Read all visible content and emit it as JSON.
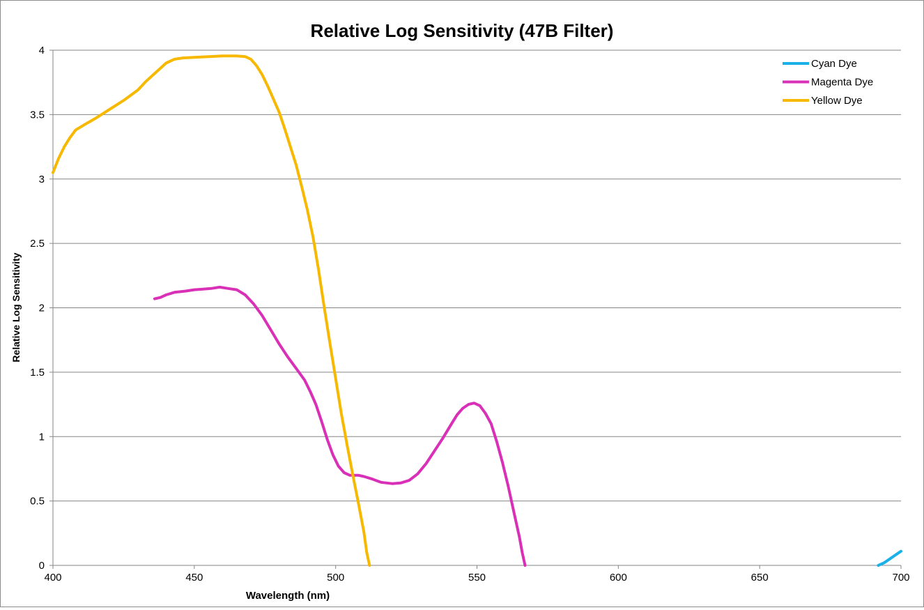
{
  "chart_data": {
    "type": "line",
    "title": "Relative Log Sensitivity (47B Filter)",
    "xlabel": "Wavelength (nm)",
    "ylabel": "Relative Log Sensitivity",
    "xlim": [
      400,
      700
    ],
    "ylim": [
      0,
      4
    ],
    "x_ticks": [
      "400",
      "450",
      "500",
      "550",
      "600",
      "650",
      "700"
    ],
    "y_ticks": [
      "0",
      "0.5",
      "1",
      "1.5",
      "2",
      "2.5",
      "3",
      "3.5",
      "4"
    ],
    "grid": "horizontal",
    "legend_position": "top-right",
    "series": [
      {
        "name": "Cyan Dye",
        "color": "#1ab0e8",
        "points": [
          [
            692,
            0
          ],
          [
            694,
            0.02
          ],
          [
            696,
            0.05
          ],
          [
            698,
            0.08
          ],
          [
            700,
            0.11
          ]
        ]
      },
      {
        "name": "Magenta Dye",
        "color": "#d930b8",
        "points": [
          [
            436,
            2.07
          ],
          [
            438,
            2.08
          ],
          [
            440,
            2.1
          ],
          [
            443,
            2.12
          ],
          [
            447,
            2.13
          ],
          [
            450,
            2.14
          ],
          [
            453,
            2.145
          ],
          [
            456,
            2.15
          ],
          [
            459,
            2.16
          ],
          [
            462,
            2.15
          ],
          [
            465,
            2.14
          ],
          [
            468,
            2.1
          ],
          [
            471,
            2.03
          ],
          [
            474,
            1.94
          ],
          [
            477,
            1.83
          ],
          [
            480,
            1.72
          ],
          [
            483,
            1.62
          ],
          [
            486,
            1.53
          ],
          [
            489,
            1.44
          ],
          [
            491,
            1.35
          ],
          [
            493,
            1.25
          ],
          [
            495,
            1.12
          ],
          [
            497,
            0.98
          ],
          [
            499,
            0.86
          ],
          [
            501,
            0.77
          ],
          [
            503,
            0.72
          ],
          [
            505,
            0.7
          ],
          [
            508,
            0.7
          ],
          [
            510,
            0.69
          ],
          [
            513,
            0.67
          ],
          [
            516,
            0.645
          ],
          [
            520,
            0.635
          ],
          [
            523,
            0.64
          ],
          [
            526,
            0.66
          ],
          [
            529,
            0.71
          ],
          [
            532,
            0.79
          ],
          [
            535,
            0.89
          ],
          [
            538,
            0.99
          ],
          [
            541,
            1.1
          ],
          [
            543,
            1.17
          ],
          [
            545,
            1.22
          ],
          [
            547,
            1.25
          ],
          [
            549,
            1.26
          ],
          [
            551,
            1.24
          ],
          [
            553,
            1.18
          ],
          [
            555,
            1.1
          ],
          [
            557,
            0.96
          ],
          [
            559,
            0.8
          ],
          [
            561,
            0.62
          ],
          [
            563,
            0.42
          ],
          [
            565,
            0.22
          ],
          [
            566,
            0.1
          ],
          [
            567,
            0
          ]
        ]
      },
      {
        "name": "Yellow Dye",
        "color": "#f7b900",
        "points": [
          [
            400,
            3.05
          ],
          [
            402,
            3.16
          ],
          [
            404,
            3.25
          ],
          [
            406,
            3.32
          ],
          [
            408,
            3.38
          ],
          [
            411,
            3.42
          ],
          [
            415,
            3.47
          ],
          [
            420,
            3.54
          ],
          [
            425,
            3.61
          ],
          [
            430,
            3.69
          ],
          [
            433,
            3.76
          ],
          [
            437,
            3.84
          ],
          [
            440,
            3.9
          ],
          [
            443,
            3.93
          ],
          [
            446,
            3.94
          ],
          [
            450,
            3.945
          ],
          [
            455,
            3.95
          ],
          [
            460,
            3.955
          ],
          [
            465,
            3.955
          ],
          [
            468,
            3.95
          ],
          [
            470,
            3.93
          ],
          [
            472,
            3.88
          ],
          [
            474,
            3.81
          ],
          [
            476,
            3.72
          ],
          [
            478,
            3.62
          ],
          [
            480,
            3.52
          ],
          [
            482,
            3.39
          ],
          [
            484,
            3.25
          ],
          [
            486,
            3.11
          ],
          [
            488,
            2.94
          ],
          [
            490,
            2.76
          ],
          [
            492,
            2.55
          ],
          [
            494,
            2.29
          ],
          [
            496,
            2.0
          ],
          [
            498,
            1.72
          ],
          [
            500,
            1.45
          ],
          [
            502,
            1.18
          ],
          [
            504,
            0.94
          ],
          [
            506,
            0.71
          ],
          [
            508,
            0.49
          ],
          [
            510,
            0.26
          ],
          [
            511,
            0.1
          ],
          [
            512,
            0
          ]
        ]
      }
    ]
  }
}
